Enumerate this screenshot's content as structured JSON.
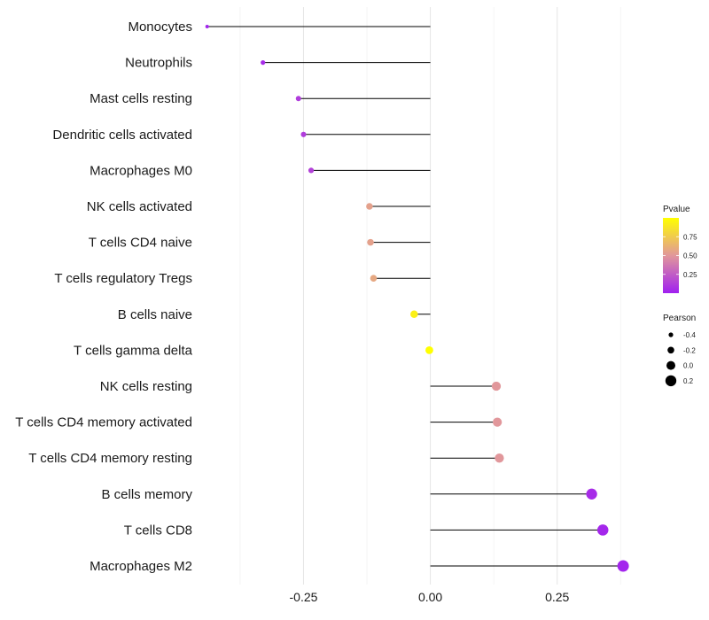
{
  "chart_data": {
    "type": "lollipop",
    "title": "",
    "xlabel": "",
    "ylabel": "",
    "xlim": [
      -0.45,
      0.42
    ],
    "x_ticks": [
      -0.25,
      0.0,
      0.25
    ],
    "x_tick_labels": [
      "-0.25",
      "0.00",
      "0.25"
    ],
    "grid": true,
    "categories": [
      "Monocytes",
      "Neutrophils",
      "Mast cells resting",
      "Dendritic cells activated",
      "Macrophages M0",
      "NK cells activated",
      "T cells CD4 naive",
      "T cells regulatory  Tregs ",
      "B cells naive",
      "T cells gamma delta",
      "NK cells resting",
      "T cells CD4 memory activated",
      "T cells CD4 memory resting",
      "B cells memory",
      "T cells CD8",
      "Macrophages M2"
    ],
    "values": [
      -0.44,
      -0.33,
      -0.26,
      -0.25,
      -0.235,
      -0.12,
      -0.118,
      -0.112,
      -0.032,
      -0.002,
      0.13,
      0.132,
      0.136,
      0.318,
      0.34,
      0.38
    ],
    "pvalues": [
      0.02,
      0.05,
      0.12,
      0.12,
      0.14,
      0.55,
      0.55,
      0.58,
      0.93,
      1.0,
      0.5,
      0.5,
      0.5,
      0.05,
      0.03,
      0.02
    ],
    "legend": {
      "color": {
        "title": "Pvalue",
        "ticks": [
          0.25,
          0.5,
          0.75
        ],
        "tick_labels": [
          "0.25",
          "0.50",
          "0.75"
        ],
        "low_color": "#a020f0",
        "mid_color": "#e1979b",
        "high_color": "#ffff00"
      },
      "size": {
        "title": "Pearson",
        "values": [
          -0.4,
          -0.2,
          0.0,
          0.2
        ],
        "labels": [
          "-0.4",
          "-0.2",
          "0.0",
          "0.2"
        ]
      },
      "placement": "right"
    }
  }
}
